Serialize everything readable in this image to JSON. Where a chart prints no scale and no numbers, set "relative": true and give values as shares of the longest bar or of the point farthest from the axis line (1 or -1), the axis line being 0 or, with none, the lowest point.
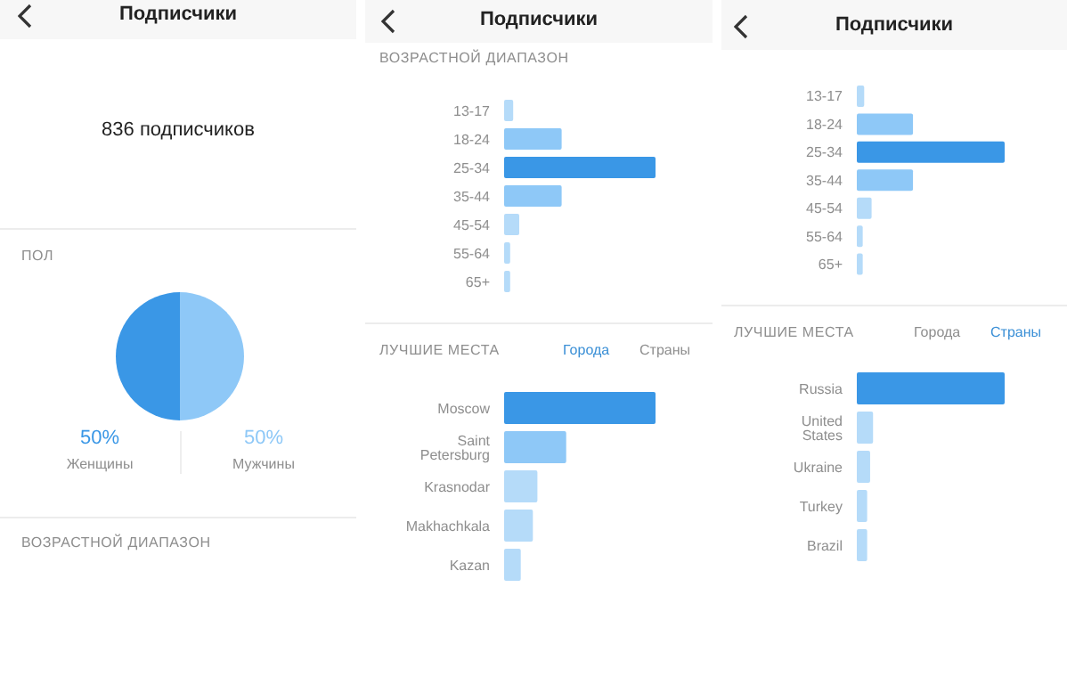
{
  "chart_data": [
    {
      "type": "pie",
      "title": "ПОЛ",
      "annotations": [
        "Подписчики",
        "836 подписчиков",
        "ВОЗРАСТНОЙ ДИАПАЗОН"
      ],
      "categories": [
        "Женщины",
        "Мужчины"
      ],
      "values": [
        50,
        50
      ],
      "colors": [
        "#3a97e6",
        "#8ec8f7"
      ],
      "value_labels": [
        "50%",
        "50%"
      ],
      "legend": false
    },
    {
      "type": "bar",
      "orientation": "horizontal",
      "relative": true,
      "title": "ВОЗРАСТНОЙ ДИАПАЗОН",
      "annotations": [
        "Подписчики"
      ],
      "categories": [
        "13-17",
        "18-24",
        "25-34",
        "35-44",
        "45-54",
        "55-64",
        "65+"
      ],
      "values": [
        0.06,
        0.38,
        1,
        0.38,
        0.1,
        0.04,
        0.04
      ],
      "colors": [
        "#b5dbf9",
        "#8ec8f7",
        "#3a97e6",
        "#8ec8f7",
        "#b5dbf9",
        "#b5dbf9",
        "#b5dbf9"
      ],
      "legend": false
    },
    {
      "type": "bar",
      "orientation": "horizontal",
      "relative": true,
      "title": "ЛУЧШИЕ МЕСТА",
      "annotations": [
        "Города",
        "Страны"
      ],
      "categories": [
        "Moscow",
        "Saint Petersburg",
        "Krasnodar",
        "Makhachkala",
        "Kazan"
      ],
      "values": [
        1,
        0.41,
        0.22,
        0.19,
        0.11
      ],
      "colors": [
        "#3a97e6",
        "#8ec8f7",
        "#b5dbf9",
        "#b5dbf9",
        "#b5dbf9"
      ],
      "legend": false
    },
    {
      "type": "bar",
      "orientation": "horizontal",
      "relative": true,
      "annotations": [
        "Подписчики"
      ],
      "categories": [
        "13-17",
        "18-24",
        "25-34",
        "35-44",
        "45-54",
        "55-64",
        "65+"
      ],
      "values": [
        0.05,
        0.38,
        1,
        0.38,
        0.1,
        0.04,
        0.04
      ],
      "colors": [
        "#b5dbf9",
        "#8ec8f7",
        "#3a97e6",
        "#8ec8f7",
        "#b5dbf9",
        "#b5dbf9",
        "#b5dbf9"
      ],
      "legend": false
    },
    {
      "type": "bar",
      "orientation": "horizontal",
      "relative": true,
      "title": "ЛУЧШИЕ МЕСТА",
      "annotations": [
        "Города",
        "Страны"
      ],
      "categories": [
        "Russia",
        "United States",
        "Ukraine",
        "Turkey",
        "Brazil"
      ],
      "values": [
        1,
        0.11,
        0.09,
        0.07,
        0.07
      ],
      "colors": [
        "#3a97e6",
        "#b5dbf9",
        "#b5dbf9",
        "#b5dbf9",
        "#b5dbf9"
      ],
      "legend": false
    }
  ]
}
